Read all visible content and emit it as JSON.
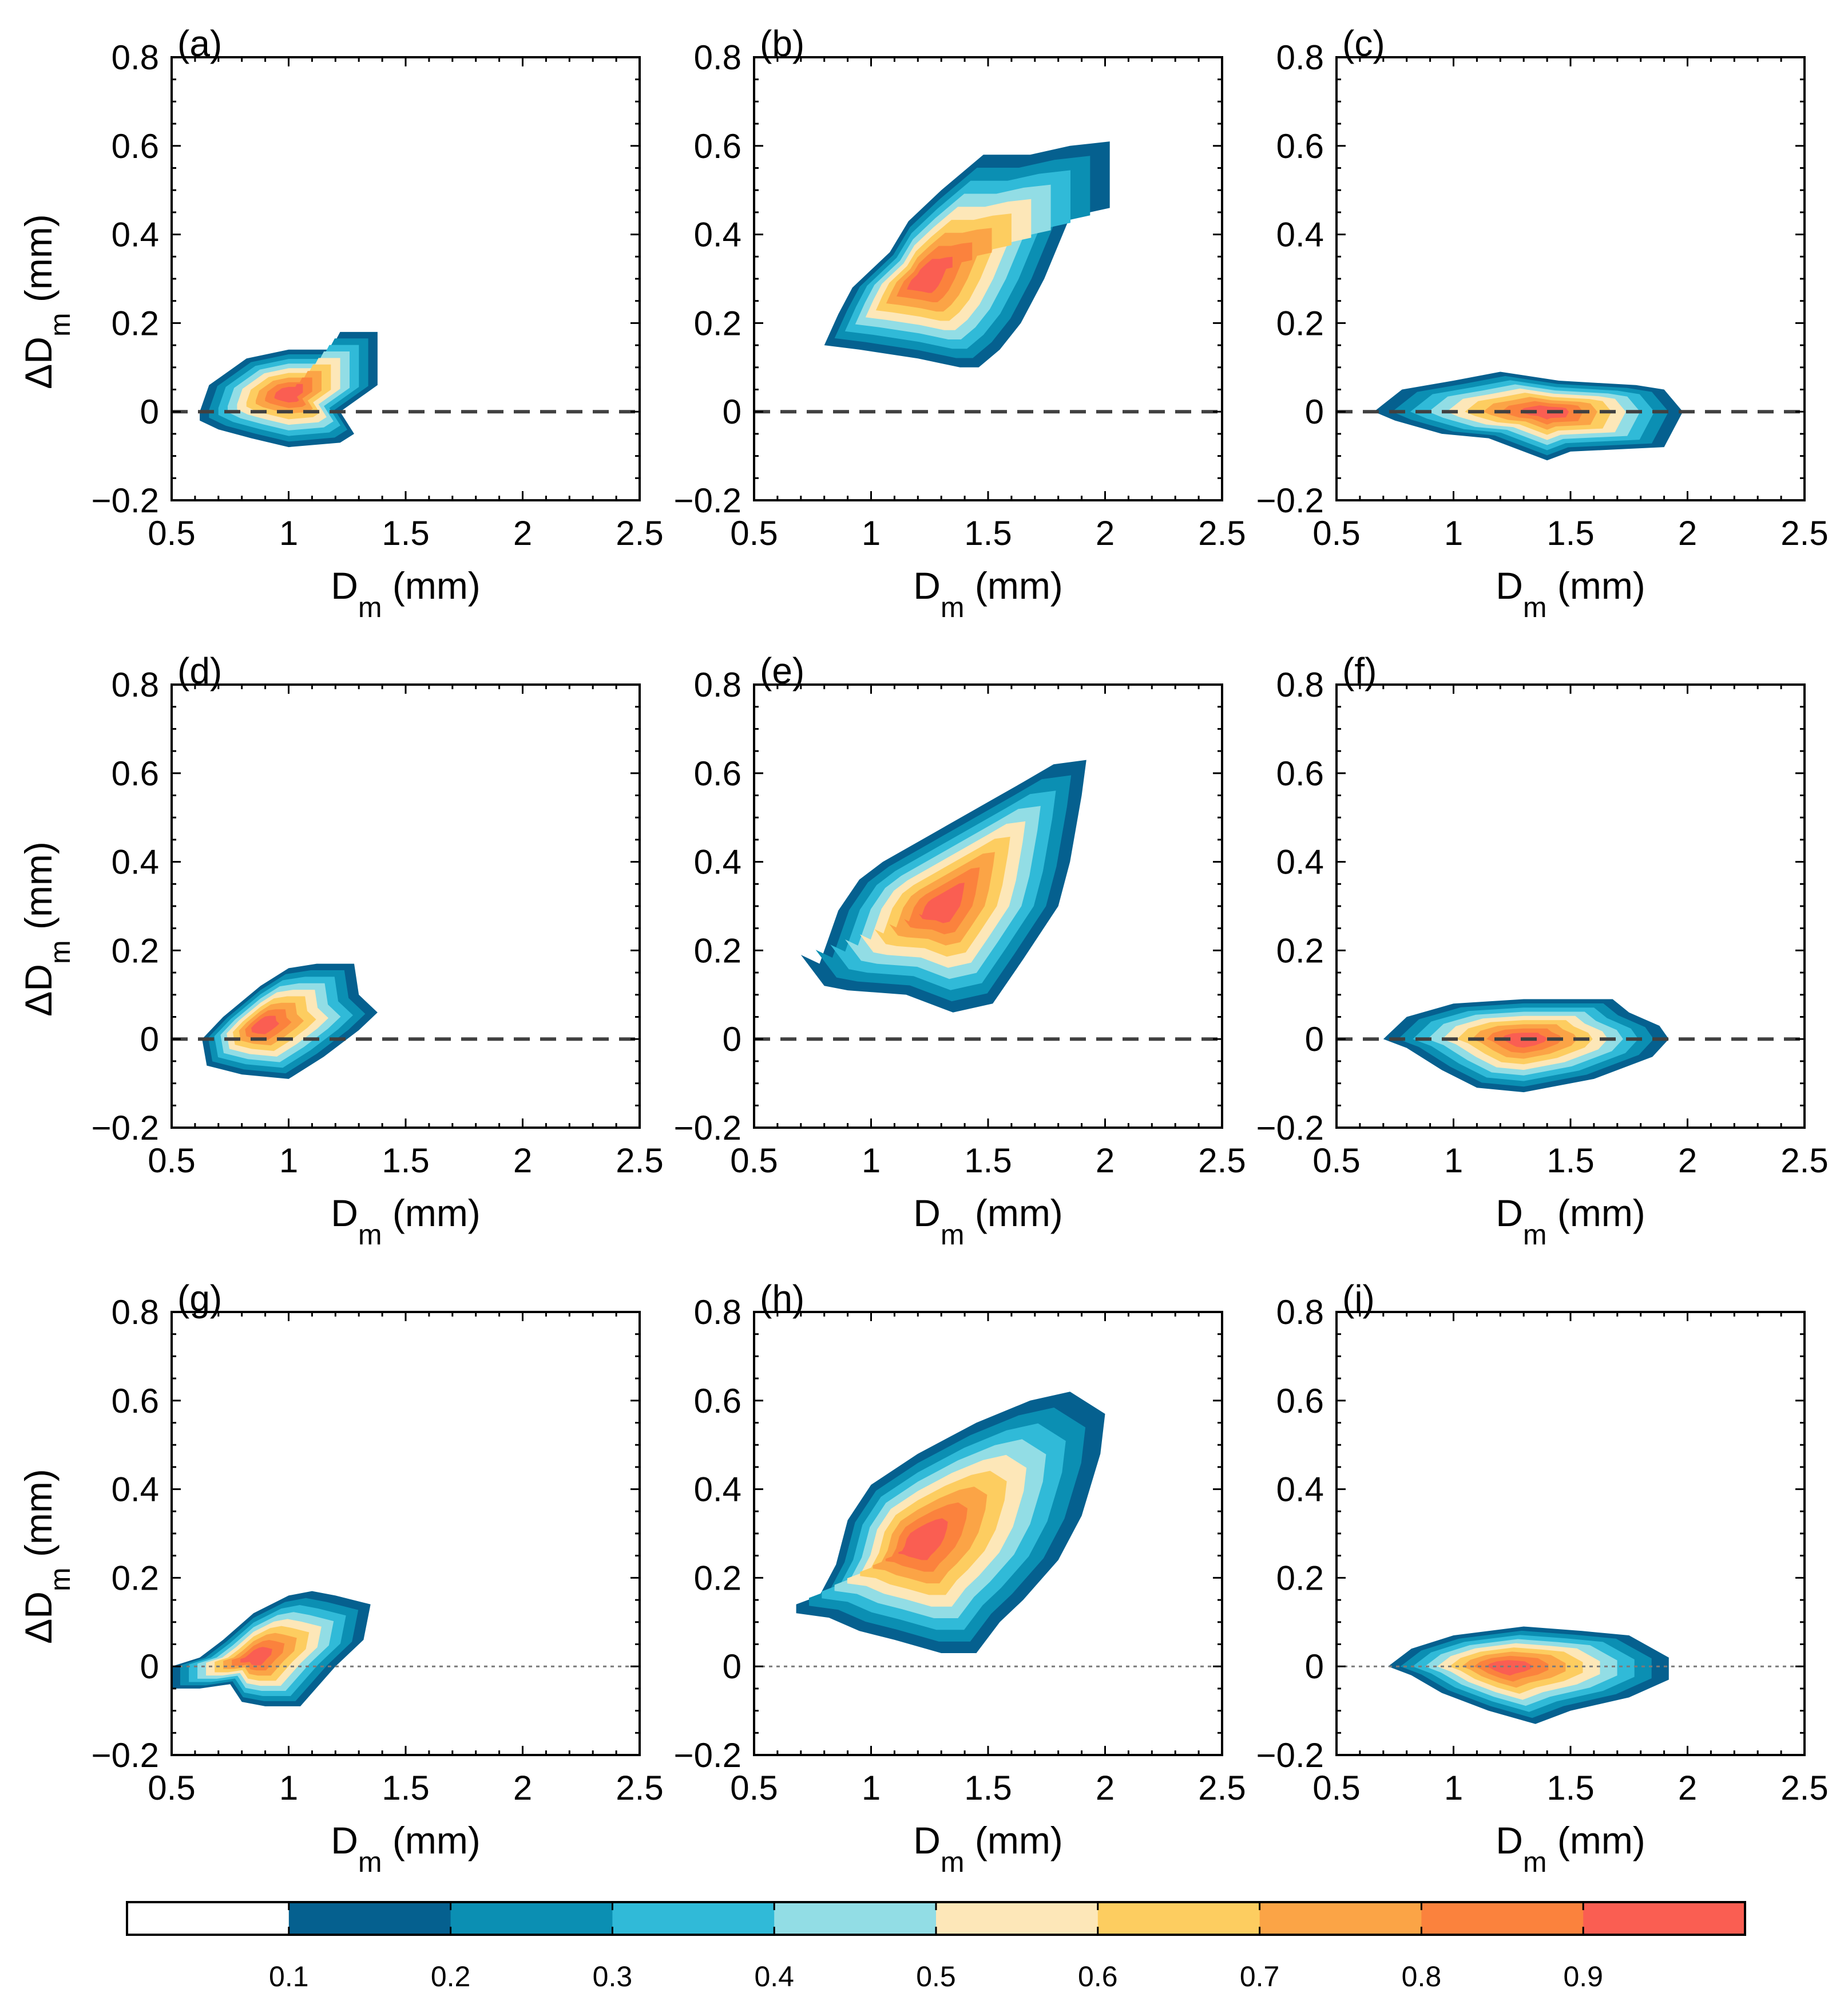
{
  "chart_data": {
    "type": "contour",
    "x_label": {
      "main": "D",
      "sub": "m",
      "unit": " (mm)"
    },
    "y_label": {
      "main": "ΔD",
      "sub": "m",
      "unit": " (mm)"
    },
    "xlim": [
      0.5,
      2.5
    ],
    "ylim": [
      -0.2,
      0.8
    ],
    "x_ticks": [
      0.5,
      1,
      1.5,
      2,
      2.5
    ],
    "x_tick_labels": [
      "0.5",
      "1",
      "1.5",
      "2",
      "2.5"
    ],
    "y_ticks": [
      -0.2,
      0,
      0.2,
      0.4,
      0.6,
      0.8
    ],
    "y_tick_labels": [
      "−0.2",
      "0",
      "0.2",
      "0.4",
      "0.6",
      "0.8"
    ],
    "reference_line": {
      "y": 0
    },
    "colorbar": {
      "levels": [
        0,
        0.1,
        0.2,
        0.3,
        0.4,
        0.5,
        0.6,
        0.7,
        0.8,
        0.9,
        1.0
      ],
      "tick_labels": [
        "0.1",
        "0.2",
        "0.3",
        "0.4",
        "0.5",
        "0.6",
        "0.7",
        "0.8",
        "0.9"
      ],
      "colors": [
        "#ffffff",
        "#05608f",
        "#0b8fb3",
        "#30bad8",
        "#92dde5",
        "#fde7b8",
        "#fdcd60",
        "#fba446",
        "#fb823d",
        "#fa5e52"
      ]
    },
    "panels": [
      {
        "label": "(a)",
        "line_style": "dashed",
        "core": {
          "x": 1.0,
          "y": 0.04
        },
        "outer": [
          [
            0.62,
            0.0
          ],
          [
            0.66,
            0.06
          ],
          [
            0.82,
            0.12
          ],
          [
            1.0,
            0.14
          ],
          [
            1.18,
            0.14
          ],
          [
            1.22,
            0.18
          ],
          [
            1.38,
            0.18
          ],
          [
            1.38,
            0.06
          ],
          [
            1.22,
            0.0
          ],
          [
            1.28,
            -0.05
          ],
          [
            1.22,
            -0.07
          ],
          [
            1.0,
            -0.08
          ],
          [
            0.84,
            -0.06
          ],
          [
            0.7,
            -0.04
          ],
          [
            0.62,
            -0.02
          ]
        ]
      },
      {
        "label": "(b)",
        "line_style": "dashed",
        "core": {
          "x": 1.22,
          "y": 0.3
        },
        "outer": [
          [
            0.8,
            0.15
          ],
          [
            0.86,
            0.22
          ],
          [
            0.92,
            0.28
          ],
          [
            1.0,
            0.32
          ],
          [
            1.08,
            0.36
          ],
          [
            1.16,
            0.43
          ],
          [
            1.3,
            0.5
          ],
          [
            1.48,
            0.58
          ],
          [
            1.68,
            0.58
          ],
          [
            1.85,
            0.6
          ],
          [
            2.02,
            0.61
          ],
          [
            2.02,
            0.46
          ],
          [
            1.85,
            0.44
          ],
          [
            1.74,
            0.3
          ],
          [
            1.64,
            0.2
          ],
          [
            1.55,
            0.14
          ],
          [
            1.46,
            0.1
          ],
          [
            1.38,
            0.1
          ],
          [
            1.2,
            0.12
          ],
          [
            0.95,
            0.14
          ]
        ]
      },
      {
        "label": "(c)",
        "line_style": "dashed",
        "core": {
          "x": 1.4,
          "y": -0.0
        },
        "outer": [
          [
            0.66,
            0.0
          ],
          [
            0.78,
            0.05
          ],
          [
            1.0,
            0.07
          ],
          [
            1.2,
            0.09
          ],
          [
            1.45,
            0.07
          ],
          [
            1.78,
            0.06
          ],
          [
            1.9,
            0.05
          ],
          [
            1.98,
            0.0
          ],
          [
            1.9,
            -0.08
          ],
          [
            1.5,
            -0.09
          ],
          [
            1.4,
            -0.11
          ],
          [
            1.15,
            -0.06
          ],
          [
            0.95,
            -0.05
          ],
          [
            0.75,
            -0.02
          ]
        ]
      },
      {
        "label": "(d)",
        "line_style": "dashed",
        "core": {
          "x": 0.88,
          "y": 0.03
        },
        "outer": [
          [
            0.63,
            0.0
          ],
          [
            0.72,
            0.05
          ],
          [
            0.88,
            0.12
          ],
          [
            1.0,
            0.16
          ],
          [
            1.12,
            0.17
          ],
          [
            1.28,
            0.17
          ],
          [
            1.3,
            0.1
          ],
          [
            1.38,
            0.06
          ],
          [
            1.3,
            0.02
          ],
          [
            1.15,
            -0.04
          ],
          [
            1.0,
            -0.09
          ],
          [
            0.8,
            -0.08
          ],
          [
            0.65,
            -0.06
          ]
        ]
      },
      {
        "label": "(e)",
        "line_style": "dashed",
        "core": {
          "x": 1.3,
          "y": 0.3
        },
        "outer": [
          [
            0.7,
            0.19
          ],
          [
            0.78,
            0.17
          ],
          [
            0.82,
            0.23
          ],
          [
            0.86,
            0.29
          ],
          [
            0.95,
            0.36
          ],
          [
            1.05,
            0.4
          ],
          [
            1.25,
            0.46
          ],
          [
            1.45,
            0.52
          ],
          [
            1.65,
            0.58
          ],
          [
            1.78,
            0.62
          ],
          [
            1.92,
            0.63
          ],
          [
            1.9,
            0.55
          ],
          [
            1.85,
            0.4
          ],
          [
            1.8,
            0.3
          ],
          [
            1.65,
            0.18
          ],
          [
            1.52,
            0.08
          ],
          [
            1.35,
            0.06
          ],
          [
            1.15,
            0.1
          ],
          [
            0.9,
            0.11
          ],
          [
            0.8,
            0.12
          ]
        ]
      },
      {
        "label": "(f)",
        "line_style": "dashed",
        "core": {
          "x": 1.3,
          "y": 0.0
        },
        "outer": [
          [
            0.7,
            0.0
          ],
          [
            0.8,
            0.05
          ],
          [
            1.0,
            0.08
          ],
          [
            1.3,
            0.09
          ],
          [
            1.68,
            0.09
          ],
          [
            1.75,
            0.06
          ],
          [
            1.88,
            0.03
          ],
          [
            1.92,
            0.0
          ],
          [
            1.85,
            -0.04
          ],
          [
            1.6,
            -0.09
          ],
          [
            1.3,
            -0.12
          ],
          [
            1.1,
            -0.11
          ],
          [
            0.95,
            -0.07
          ],
          [
            0.8,
            -0.02
          ]
        ]
      },
      {
        "label": "(g)",
        "line_style": "dotted",
        "core": {
          "x": 0.85,
          "y": 0.02
        },
        "outer": [
          [
            0.5,
            0.0
          ],
          [
            0.62,
            0.02
          ],
          [
            0.72,
            0.06
          ],
          [
            0.85,
            0.12
          ],
          [
            1.0,
            0.16
          ],
          [
            1.1,
            0.17
          ],
          [
            1.2,
            0.16
          ],
          [
            1.35,
            0.14
          ],
          [
            1.32,
            0.06
          ],
          [
            1.2,
            0.0
          ],
          [
            1.1,
            -0.06
          ],
          [
            1.05,
            -0.09
          ],
          [
            0.9,
            -0.09
          ],
          [
            0.8,
            -0.08
          ],
          [
            0.75,
            -0.04
          ],
          [
            0.62,
            -0.05
          ],
          [
            0.5,
            -0.05
          ]
        ]
      },
      {
        "label": "(h)",
        "line_style": "dotted",
        "core": {
          "x": 1.2,
          "y": 0.28
        },
        "outer": [
          [
            0.68,
            0.14
          ],
          [
            0.78,
            0.16
          ],
          [
            0.85,
            0.23
          ],
          [
            0.9,
            0.33
          ],
          [
            1.0,
            0.41
          ],
          [
            1.2,
            0.48
          ],
          [
            1.45,
            0.55
          ],
          [
            1.68,
            0.6
          ],
          [
            1.85,
            0.62
          ],
          [
            2.0,
            0.57
          ],
          [
            1.98,
            0.48
          ],
          [
            1.9,
            0.34
          ],
          [
            1.8,
            0.24
          ],
          [
            1.65,
            0.15
          ],
          [
            1.55,
            0.1
          ],
          [
            1.45,
            0.03
          ],
          [
            1.3,
            0.03
          ],
          [
            1.1,
            0.06
          ],
          [
            0.95,
            0.08
          ],
          [
            0.82,
            0.11
          ],
          [
            0.68,
            0.12
          ]
        ]
      },
      {
        "label": "(i)",
        "line_style": "dotted",
        "core": {
          "x": 1.22,
          "y": 0.0
        },
        "outer": [
          [
            0.72,
            0.0
          ],
          [
            0.82,
            0.04
          ],
          [
            1.0,
            0.07
          ],
          [
            1.3,
            0.09
          ],
          [
            1.55,
            0.08
          ],
          [
            1.75,
            0.07
          ],
          [
            1.92,
            0.02
          ],
          [
            1.92,
            -0.03
          ],
          [
            1.75,
            -0.07
          ],
          [
            1.5,
            -0.1
          ],
          [
            1.35,
            -0.13
          ],
          [
            1.15,
            -0.1
          ],
          [
            0.95,
            -0.06
          ],
          [
            0.82,
            -0.02
          ]
        ]
      }
    ]
  }
}
